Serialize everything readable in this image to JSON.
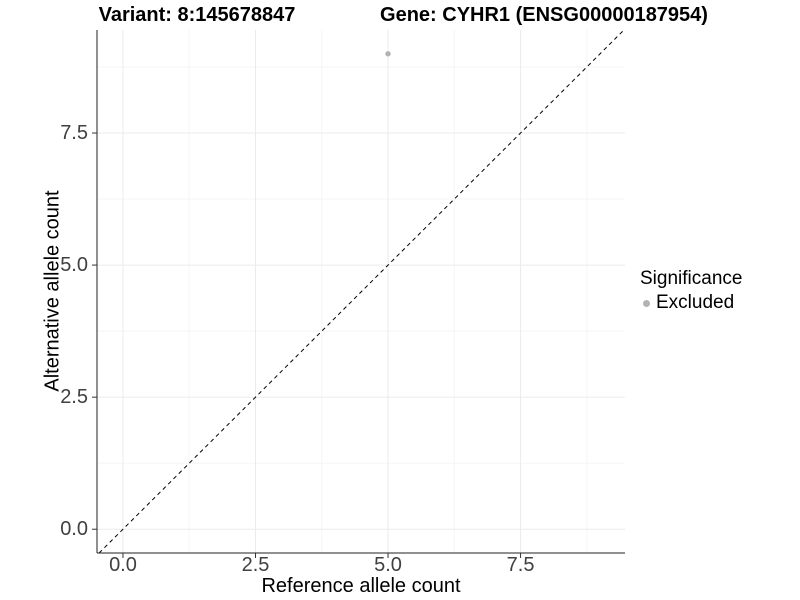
{
  "chart_data": {
    "type": "scatter",
    "title_left": "Variant: 8:145678847",
    "title_right": "Gene: CYHR1 (ENSG00000187954)",
    "xlabel": "Reference allele count",
    "ylabel": "Alternative allele count",
    "xlim": [
      -0.49,
      9.47
    ],
    "ylim": [
      -0.45,
      9.45
    ],
    "x_ticks": {
      "values": [
        0,
        2.5,
        5,
        7.5
      ],
      "labels": [
        "0.0",
        "2.5",
        "5.0",
        "7.5"
      ]
    },
    "y_ticks": {
      "values": [
        0,
        2.5,
        5,
        7.5
      ],
      "labels": [
        "0.0",
        "2.5",
        "5.0",
        "7.5"
      ]
    },
    "x_minor_ticks": [
      1.25,
      3.75,
      6.25,
      8.75
    ],
    "y_minor_ticks": [
      1.25,
      3.75,
      6.25,
      8.75
    ],
    "grid": "major+minor",
    "points": [
      {
        "x": 5,
        "y": 9,
        "significance": "Excluded"
      }
    ],
    "identity_line": {
      "slope": 1,
      "intercept": 0,
      "style": "dashed",
      "color": "#000000"
    },
    "legend": {
      "title": "Significance",
      "position": "right",
      "entries": [
        {
          "label": "Excluded",
          "color": "#b3b3b3",
          "shape": "circle"
        }
      ]
    },
    "colors": {
      "background": "#ffffff",
      "grid_major": "#ebebeb",
      "grid_minor": "#f5f5f5",
      "axis_line": "#222222",
      "tick_mark": "#333333",
      "tick_label": "#404040",
      "point": "#b3b3b3",
      "text": "#000000"
    }
  }
}
